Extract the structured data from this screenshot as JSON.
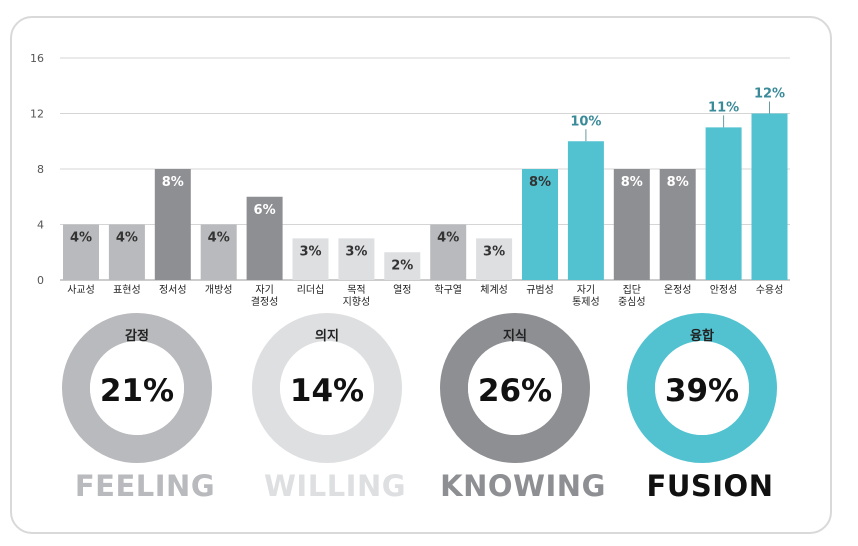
{
  "chart_data": {
    "type": "bar",
    "ylim": [
      0,
      16
    ],
    "yticks": [
      "0",
      "4",
      "8",
      "12",
      "16"
    ],
    "grid": true,
    "categories": [
      [
        "사교성"
      ],
      [
        "표현성"
      ],
      [
        "정서성"
      ],
      [
        "개방성"
      ],
      [
        "자기",
        "결정성"
      ],
      [
        "리더십"
      ],
      [
        "목적",
        "지향성"
      ],
      [
        "열정"
      ],
      [
        "학구열"
      ],
      [
        "체계성"
      ],
      [
        "규범성"
      ],
      [
        "자기",
        "통제성"
      ],
      [
        "집단",
        "중심성"
      ],
      [
        "온정성"
      ],
      [
        "안정성"
      ],
      [
        "수용성"
      ]
    ],
    "values": [
      4,
      4,
      8,
      4,
      6,
      3,
      3,
      2,
      4,
      3,
      8,
      10,
      8,
      8,
      11,
      12
    ],
    "labels": [
      "4%",
      "4%",
      "8%",
      "4%",
      "6%",
      "3%",
      "3%",
      "2%",
      "4%",
      "3%",
      "8%",
      "10%",
      "8%",
      "8%",
      "11%",
      "12%"
    ],
    "bar_colors": [
      "#b9babd",
      "#b9babd",
      "#8e8f93",
      "#b9babd",
      "#8e8f93",
      "#dedfe1",
      "#dedfe1",
      "#dedfe1",
      "#b9babd",
      "#dedfe1",
      "#52c2d1",
      "#52c2d1",
      "#8e8f93",
      "#8e8f93",
      "#52c2d1",
      "#52c2d1"
    ],
    "label_colors": [
      "#333333",
      "#333333",
      "#ffffff",
      "#333333",
      "#ffffff",
      "#333333",
      "#333333",
      "#333333",
      "#333333",
      "#333333",
      "#333333",
      "#3a8a99",
      "#ffffff",
      "#ffffff",
      "#3a8a99",
      "#3a8a99"
    ],
    "label_above": [
      false,
      false,
      false,
      false,
      false,
      false,
      false,
      false,
      false,
      false,
      false,
      true,
      false,
      false,
      true,
      true
    ]
  },
  "groups": [
    {
      "title": "감정",
      "percent": "21%",
      "value": 21,
      "word": "FEELING",
      "ring_color": "#b9babd",
      "word_color": "#b9babd"
    },
    {
      "title": "의지",
      "percent": "14%",
      "value": 14,
      "word": "WILLING",
      "ring_color": "#dedfe1",
      "word_color": "#dedfe1"
    },
    {
      "title": "지식",
      "percent": "26%",
      "value": 26,
      "word": "KNOWING",
      "ring_color": "#8e8f93",
      "word_color": "#8e8f93"
    },
    {
      "title": "융합",
      "percent": "39%",
      "value": 39,
      "word": "FUSION",
      "ring_color": "#52c2d1",
      "word_color": "#111111"
    }
  ]
}
